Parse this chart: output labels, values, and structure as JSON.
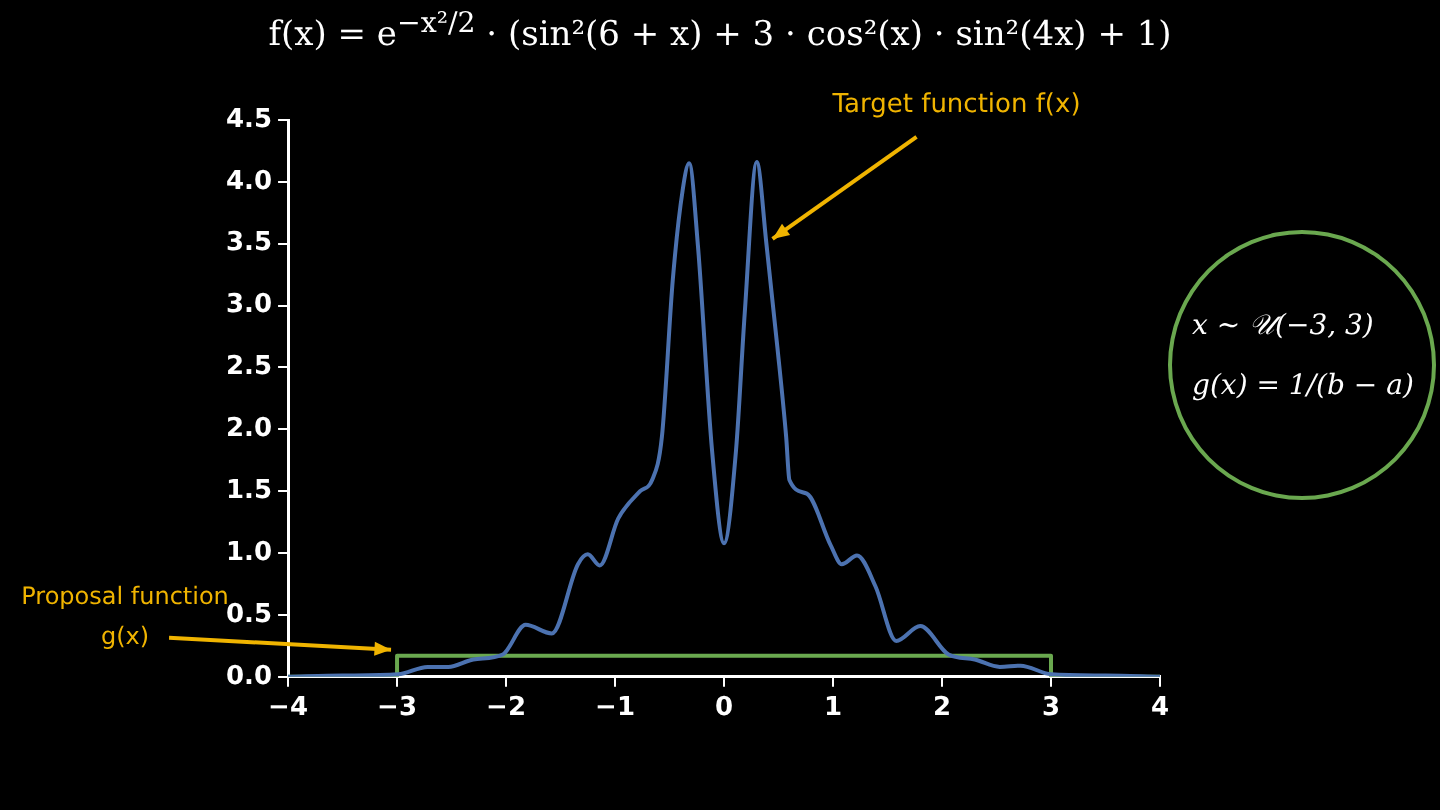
{
  "chart_data": {
    "type": "line",
    "title": "f(x) = e$^{−x²/2}$ · (sin²(6 + x) + 3 · cos²(x) · sin²(4x) + 1)",
    "xlim": [
      -4,
      4
    ],
    "xticks": [
      -4,
      -3,
      -2,
      -1,
      0,
      1,
      2,
      3,
      4
    ],
    "ylim": [
      0,
      4.5
    ],
    "yticks": [
      {
        "value": 0,
        "label": "0.0"
      },
      0.5,
      {
        "value": 1,
        "label": "1.0"
      },
      1.5,
      {
        "value": 2,
        "label": "2.0"
      },
      2.5,
      {
        "value": 3,
        "label": "3.0"
      },
      3.5,
      {
        "value": 4,
        "label": "4.0"
      },
      4.5
    ],
    "grid": false,
    "legend": false,
    "marker": "none",
    "line_style": "solid",
    "series": [
      {
        "color": "#4c72b0",
        "x": [
          -4,
          -3.5,
          -2.99,
          -2.72,
          -2.53,
          -2.3,
          -2.03,
          -1.82,
          -1.58,
          -1.34,
          -1.25,
          -1.14,
          -0.97,
          -0.77,
          -0.66,
          -0.57,
          -0.47,
          -0.38,
          -0.32,
          -0.24,
          -0.11,
          0,
          0.11,
          0.19,
          0.3,
          0.39,
          0.49,
          0.57,
          0.6,
          0.76,
          0.98,
          1.08,
          1.22,
          1.39,
          1.58,
          1.8,
          2.06,
          2.3,
          2.53,
          2.72,
          3.0,
          3.5,
          4
        ],
        "values": [
          0,
          0.01,
          0.02,
          0.08,
          0.08,
          0.14,
          0.18,
          0.42,
          0.35,
          0.91,
          0.99,
          0.9,
          1.28,
          1.5,
          1.59,
          1.94,
          3.21,
          3.93,
          4.15,
          3.49,
          1.83,
          1.08,
          1.83,
          2.94,
          4.16,
          3.49,
          2.66,
          1.94,
          1.59,
          1.48,
          1.06,
          0.91,
          0.98,
          0.73,
          0.29,
          0.41,
          0.18,
          0.14,
          0.08,
          0.09,
          0.02,
          0.01,
          0
        ]
      },
      {
        "type": "step",
        "color": "#6aa84f",
        "x": [
          -4,
          -3,
          3,
          4
        ],
        "values": [
          0,
          0.17,
          0,
          0
        ]
      }
    ],
    "annotations": [
      {
        "text": "Target function f(x)",
        "x": 0.39,
        "y": 3.49
      },
      {
        "text": "Proposal function g(x)",
        "x": -3,
        "y": 0.17
      },
      "x ~ 𝒰(−3, 3)",
      "g(x) = 1/(b − a)"
    ]
  }
}
